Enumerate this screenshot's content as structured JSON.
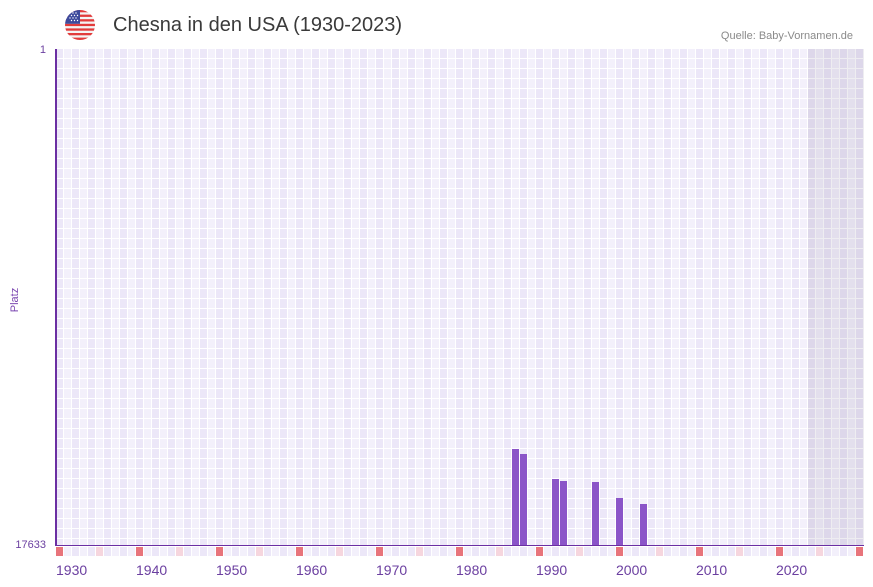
{
  "header": {
    "title": "Chesna in den USA (1930-2023)",
    "source": "Quelle: Baby-Vornamen.de",
    "flag_icon": "us-flag-icon"
  },
  "colors": {
    "bar": "#8b55c8",
    "axis": "#6b2fa3",
    "decade_marker": "#e8747b",
    "half_decade_marker": "#f6d6de",
    "marker_a": "#ece7f8",
    "marker_b": "#f3f0fb",
    "label": "#6b3fa0"
  },
  "chart_data": {
    "type": "bar",
    "title": "Chesna in den USA (1930-2023)",
    "source": "Quelle: Baby-Vornamen.de",
    "xlabel": "",
    "ylabel": "Platz",
    "y_axis_inverted": true,
    "ylim": [
      17633,
      1
    ],
    "y_ticks": [
      "1",
      "17633"
    ],
    "xlim": [
      1930,
      2030
    ],
    "x_ticks": [
      "1930",
      "1940",
      "1950",
      "1960",
      "1970",
      "1980",
      "1990",
      "2000",
      "2010",
      "2020"
    ],
    "grid": true,
    "legend": null,
    "shaded_range": [
      2024,
      2030
    ],
    "categories": [
      1987,
      1988,
      1992,
      1993,
      1997,
      2000,
      2003
    ],
    "values": [
      14220,
      14400,
      15290,
      15360,
      15390,
      15960,
      16180
    ]
  }
}
